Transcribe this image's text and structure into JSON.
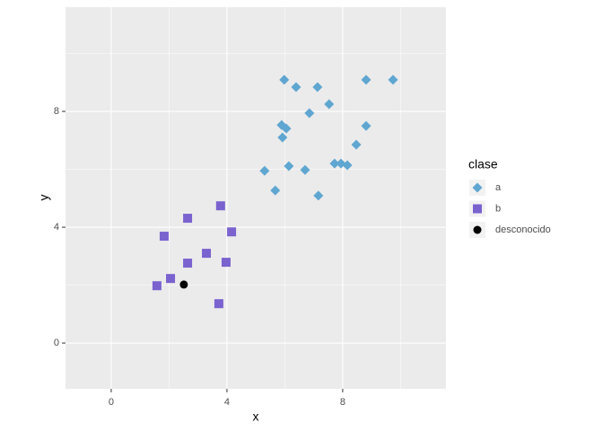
{
  "chart_data": {
    "type": "scatter",
    "x_label": "x",
    "y_label": "y",
    "xlim": [
      -1.58,
      11.57
    ],
    "ylim": [
      -1.58,
      11.6
    ],
    "xticks": [
      0,
      4,
      8
    ],
    "yticks": [
      0,
      4,
      8
    ],
    "minor_xticks": [
      2,
      6,
      10
    ],
    "minor_yticks": [
      2,
      6,
      10
    ],
    "grid": true,
    "legend_title": "clase",
    "legend_position": "right",
    "series": [
      {
        "name": "a",
        "color": "#5fa6d1",
        "shape": "diamond",
        "x": [
          5.98,
          6.39,
          7.13,
          7.53,
          8.81,
          9.74,
          6.85,
          5.89,
          6.05,
          5.92,
          8.81,
          8.47,
          5.3,
          6.14,
          6.7,
          7.72,
          7.94,
          8.16,
          5.67,
          7.16
        ],
        "values": [
          9.09,
          8.84,
          8.84,
          8.25,
          9.09,
          9.09,
          7.94,
          7.53,
          7.41,
          7.1,
          7.5,
          6.85,
          5.95,
          6.11,
          5.98,
          6.2,
          6.2,
          6.14,
          5.27,
          5.09
        ]
      },
      {
        "name": "b",
        "color": "#7a62cf",
        "shape": "square",
        "x": [
          2.64,
          3.78,
          1.83,
          4.16,
          3.29,
          2.64,
          3.97,
          2.05,
          1.58,
          3.72
        ],
        "values": [
          4.31,
          4.74,
          3.69,
          3.84,
          3.1,
          2.76,
          2.79,
          2.23,
          1.98,
          1.36
        ]
      },
      {
        "name": "desconocido",
        "color": "#000000",
        "shape": "circle",
        "x": [
          2.51
        ],
        "values": [
          2.02
        ]
      }
    ]
  }
}
